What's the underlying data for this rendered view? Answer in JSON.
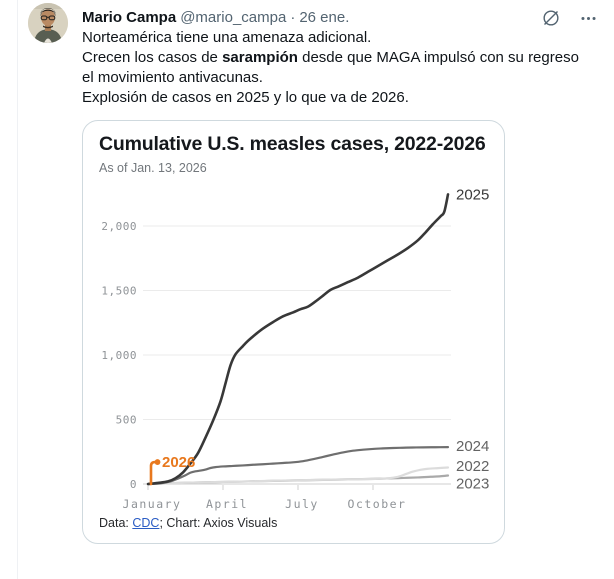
{
  "tweet": {
    "author": "Mario Campa",
    "handle": "@mario_campa",
    "separator": "·",
    "date": "26 ene.",
    "paragraph1": "Norteamérica tiene una amenaza adicional.",
    "paragraph2_prefix": "Crecen los casos de ",
    "paragraph2_bold": "sarampión",
    "paragraph2_suffix": " desde que MAGA impulsó con su regreso el movimiento antivacunas.",
    "paragraph3": "Explosión de casos en 2025 y lo que va de 2026."
  },
  "chart_card": {
    "source_prefix": "Data: ",
    "source_link": "CDC",
    "source_suffix": "; Chart: Axios Visuals"
  },
  "chart_data": {
    "type": "line",
    "title": "Cumulative U.S. measles cases, 2022-2026",
    "subtitle": "As of Jan. 13, 2026",
    "x_axis": {
      "unit": "month (0 = Jan 1, 12 = Dec 31)",
      "tick_months": [
        0,
        3,
        6,
        9
      ],
      "tick_labels": [
        "January",
        "April",
        "July",
        "October"
      ],
      "range_months": [
        0,
        12
      ]
    },
    "y_axis": {
      "ticks": [
        0,
        500,
        1000,
        1500,
        2000
      ],
      "tick_labels": [
        "0",
        "500",
        "1,000",
        "1,500",
        "2,000"
      ],
      "range": [
        0,
        2300
      ]
    },
    "grid": "horizontal",
    "legend_position": "right-end-labels",
    "colors": {
      "grid": "#ebebeb",
      "zero_line": "#cfcfcf",
      "axis_tick": "#cfcfcf",
      "tick_text": "#8f9397"
    },
    "series": [
      {
        "name": "2025",
        "color": "#383838",
        "width": 2.6,
        "label_color": "#3a3a3a",
        "label_at_value": 2245,
        "final_value": 2245,
        "points": [
          [
            0,
            0
          ],
          [
            0.4,
            8
          ],
          [
            0.8,
            20
          ],
          [
            1.1,
            45
          ],
          [
            1.4,
            90
          ],
          [
            1.7,
            160
          ],
          [
            2.0,
            240
          ],
          [
            2.3,
            360
          ],
          [
            2.6,
            490
          ],
          [
            2.9,
            640
          ],
          [
            3.1,
            780
          ],
          [
            3.3,
            920
          ],
          [
            3.5,
            1005
          ],
          [
            3.8,
            1070
          ],
          [
            4.0,
            1110
          ],
          [
            4.3,
            1160
          ],
          [
            4.6,
            1205
          ],
          [
            5.0,
            1255
          ],
          [
            5.4,
            1300
          ],
          [
            5.8,
            1330
          ],
          [
            6.1,
            1355
          ],
          [
            6.4,
            1375
          ],
          [
            6.7,
            1415
          ],
          [
            7.0,
            1460
          ],
          [
            7.3,
            1505
          ],
          [
            7.6,
            1530
          ],
          [
            8.0,
            1565
          ],
          [
            8.4,
            1600
          ],
          [
            8.8,
            1645
          ],
          [
            9.2,
            1690
          ],
          [
            9.6,
            1735
          ],
          [
            10.0,
            1780
          ],
          [
            10.4,
            1830
          ],
          [
            10.8,
            1890
          ],
          [
            11.1,
            1950
          ],
          [
            11.4,
            2015
          ],
          [
            11.7,
            2075
          ],
          [
            11.85,
            2110
          ],
          [
            12,
            2245
          ]
        ]
      },
      {
        "name": "2024",
        "color": "#6f6f6f",
        "width": 2.2,
        "label_color": "#636363",
        "label_at_value": 295,
        "final_value": 286,
        "points": [
          [
            0,
            0
          ],
          [
            0.5,
            6
          ],
          [
            0.9,
            20
          ],
          [
            1.2,
            42
          ],
          [
            1.5,
            68
          ],
          [
            1.7,
            88
          ],
          [
            1.9,
            98
          ],
          [
            2.1,
            104
          ],
          [
            2.3,
            112
          ],
          [
            2.5,
            124
          ],
          [
            2.7,
            131
          ],
          [
            3.0,
            136
          ],
          [
            3.4,
            140
          ],
          [
            3.8,
            144
          ],
          [
            4.2,
            149
          ],
          [
            4.6,
            153
          ],
          [
            5.0,
            158
          ],
          [
            5.4,
            163
          ],
          [
            5.8,
            168
          ],
          [
            6.2,
            177
          ],
          [
            6.6,
            192
          ],
          [
            7.0,
            210
          ],
          [
            7.4,
            228
          ],
          [
            7.8,
            245
          ],
          [
            8.2,
            258
          ],
          [
            8.6,
            266
          ],
          [
            9.0,
            272
          ],
          [
            9.4,
            276
          ],
          [
            9.8,
            279
          ],
          [
            10.2,
            281
          ],
          [
            10.6,
            283
          ],
          [
            11.0,
            284
          ],
          [
            11.5,
            285
          ],
          [
            12,
            286
          ]
        ]
      },
      {
        "name": "2022",
        "color": "#dcdcdc",
        "width": 2.2,
        "label_color": "#636363",
        "label_at_value": 140,
        "final_value": 128,
        "points": [
          [
            0,
            0
          ],
          [
            0.6,
            4
          ],
          [
            1.2,
            8
          ],
          [
            2,
            12
          ],
          [
            3,
            16
          ],
          [
            4,
            20
          ],
          [
            5,
            25
          ],
          [
            6,
            29
          ],
          [
            7,
            33
          ],
          [
            8,
            36
          ],
          [
            9,
            39
          ],
          [
            9.6,
            44
          ],
          [
            10.0,
            56
          ],
          [
            10.3,
            76
          ],
          [
            10.6,
            96
          ],
          [
            10.9,
            110
          ],
          [
            11.2,
            118
          ],
          [
            11.6,
            123
          ],
          [
            12,
            128
          ]
        ]
      },
      {
        "name": "2023",
        "color": "#a9a9a9",
        "width": 2.2,
        "label_color": "#636363",
        "label_at_value": 5,
        "final_value": 66,
        "points": [
          [
            0,
            0
          ],
          [
            0.6,
            4
          ],
          [
            1.2,
            8
          ],
          [
            2,
            12
          ],
          [
            3,
            16
          ],
          [
            4,
            20
          ],
          [
            5,
            24
          ],
          [
            6,
            28
          ],
          [
            7,
            32
          ],
          [
            8,
            36
          ],
          [
            9,
            40
          ],
          [
            9.6,
            43
          ],
          [
            10.2,
            47
          ],
          [
            10.8,
            51
          ],
          [
            11.3,
            56
          ],
          [
            11.7,
            60
          ],
          [
            12,
            66
          ]
        ]
      }
    ],
    "marker_2026": {
      "label": "2026",
      "month": 0.12,
      "value": 170,
      "color": "#e8781d"
    }
  }
}
